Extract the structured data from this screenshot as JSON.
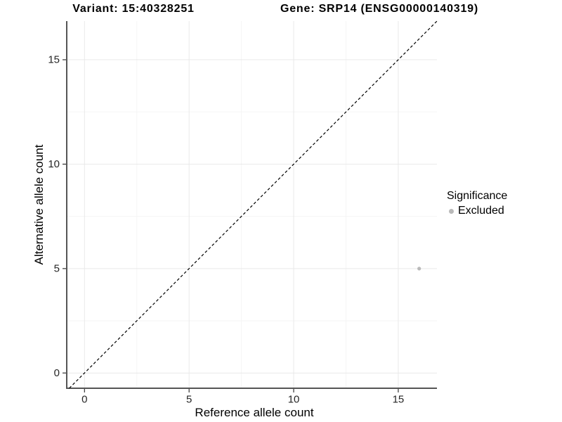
{
  "chart_data": {
    "type": "scatter",
    "titles": [
      "Variant: 15:40328251",
      "Gene: SRP14 (ENSG00000140319)"
    ],
    "xlabel": "Reference allele count",
    "ylabel": "Alternative allele count",
    "xlim": [
      -0.85,
      16.85
    ],
    "ylim": [
      -0.73,
      16.85
    ],
    "xticks": [
      0,
      5,
      10,
      15
    ],
    "yticks": [
      0,
      5,
      10,
      15
    ],
    "x_minor_breaks": [
      2.5,
      7.5,
      12.5
    ],
    "y_minor_breaks": [
      2.5,
      7.5,
      12.5
    ],
    "grid": true,
    "identity_line": {
      "slope": 1,
      "intercept": 0,
      "style": "dashed",
      "color": "#000000"
    },
    "points": [
      {
        "x": 16,
        "y": 5,
        "significance": "Excluded"
      }
    ],
    "legend": {
      "title": "Significance",
      "position": "right",
      "items": [
        {
          "label": "Excluded",
          "color": "#b9b9b9",
          "shape": "circle"
        }
      ]
    },
    "colors": {
      "point": "#b9b9b9",
      "grid_major": "#e9e9e9",
      "grid_minor": "#f5f5f5",
      "axis_line": "#555555",
      "tick_mark": "#333333",
      "tick_text": "#262626",
      "title_text": "#000000",
      "background": "#ffffff"
    }
  }
}
